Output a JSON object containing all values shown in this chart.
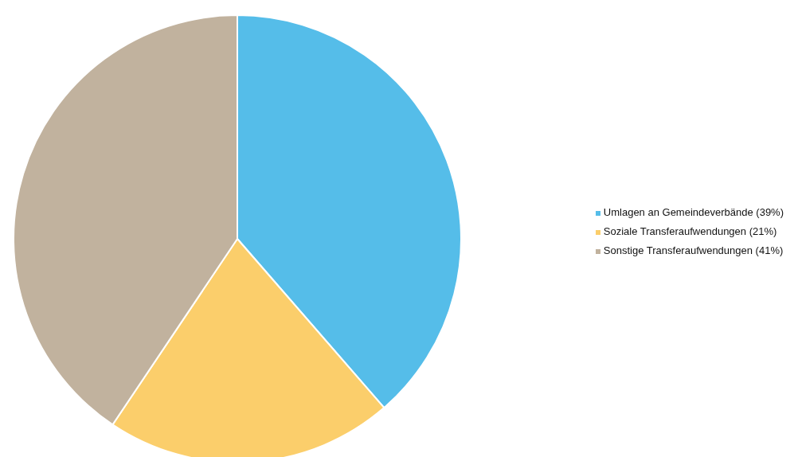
{
  "chart_data": {
    "type": "pie",
    "categories": [
      "Umlagen an Gemeindeverbände (39%)",
      "Soziale Transferaufwendungen (21%)",
      "Sonstige Transferaufwendungen (41%)"
    ],
    "values": [
      39,
      21,
      41
    ],
    "colors": [
      "#55bde9",
      "#fbce6b",
      "#c1b29e"
    ],
    "legend": "right"
  }
}
